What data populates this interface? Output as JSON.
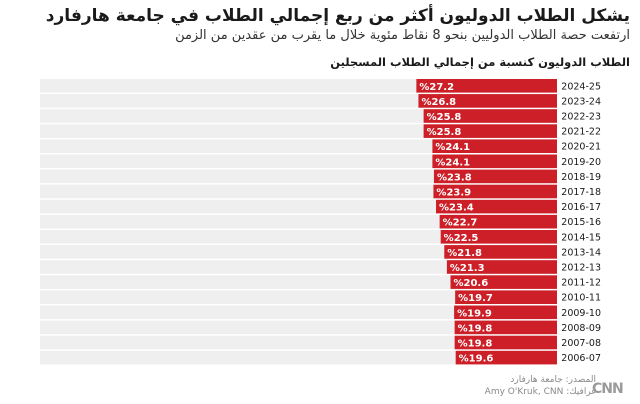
{
  "title": "يشكل الطلاب الدوليون أكثر من ربع إجمالي الطلاب في جامعة هارفارد",
  "subtitle": "ارتفعت حصة الطلاب الدوليين بنحو 8 نقاط مئوية خلال ما يقرب من عقدين من الزمن",
  "chart_heading": "الطلاب الدوليون كنسبة من إجمالي الطلاب المسجلين",
  "source": {
    "line1": "المصدر: جامعة هارفارد",
    "line2": "غرافيك: Amy O'Kruk, CNN"
  },
  "logo_text": "CNN",
  "colors": {
    "bar": "#cc1f27",
    "track": "#efefef",
    "label_text": "#ffffff"
  },
  "chart_data": {
    "type": "bar",
    "orientation": "horizontal",
    "direction": "right-to-left",
    "title": "الطلاب الدوليون كنسبة من إجمالي الطلاب المسجلين",
    "unit": "%",
    "xlim": [
      0,
      100
    ],
    "grid": false,
    "legend": "none",
    "categories": [
      "2024-25",
      "2023-24",
      "2022-23",
      "2021-22",
      "2020-21",
      "2019-20",
      "2018-19",
      "2017-18",
      "2016-17",
      "2015-16",
      "2014-15",
      "2013-14",
      "2012-13",
      "2011-12",
      "2010-11",
      "2009-10",
      "2008-09",
      "2007-08",
      "2006-07"
    ],
    "labels": [
      "%27.2",
      "%26.8",
      "%25.8",
      "%25.8",
      "%24.1",
      "%24.1",
      "%23.8",
      "%23.9",
      "%23.4",
      "%22.7",
      "%22.5",
      "%21.8",
      "%21.3",
      "%20.6",
      "%19.7",
      "%19.9",
      "%19.8",
      "%19.8",
      "%19.6"
    ],
    "values": [
      27.2,
      26.8,
      25.8,
      25.8,
      24.1,
      24.1,
      23.8,
      23.9,
      23.4,
      22.7,
      22.5,
      21.8,
      21.3,
      20.6,
      19.7,
      19.9,
      19.8,
      19.8,
      19.6
    ]
  }
}
